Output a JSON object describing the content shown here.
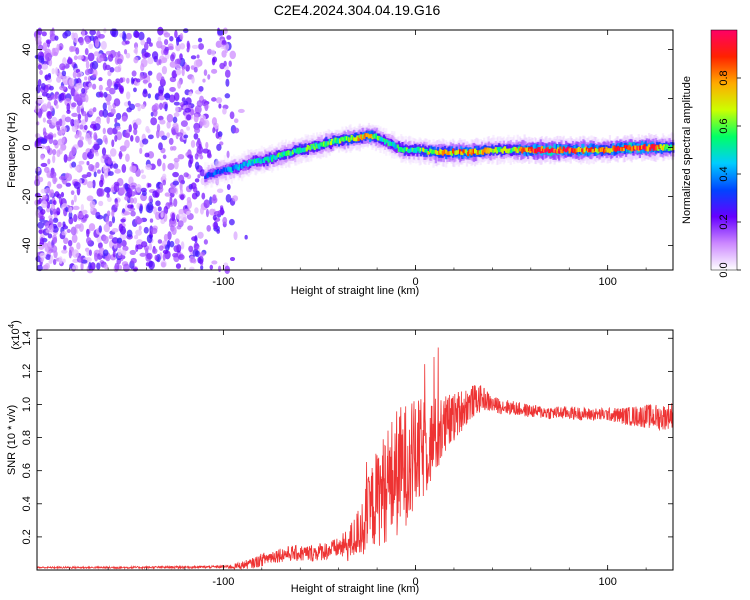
{
  "title": "C2E4.2024.304.04.19.G16",
  "chart_data": [
    {
      "type": "heatmap",
      "xlabel": "Height of straight line (km)",
      "ylabel": "Frequency (Hz)",
      "xlim": [
        -197,
        134
      ],
      "ylim": [
        -50,
        48
      ],
      "x_ticks": [
        -100,
        0,
        100
      ],
      "x_tick_labels": [
        "-100",
        "0",
        "100"
      ],
      "y_ticks": [
        -40,
        -20,
        0,
        20,
        40
      ],
      "y_tick_labels": [
        "-40",
        "-20",
        "0",
        "20",
        "40"
      ],
      "colorbar": {
        "label": "Normalized spectral amplitude",
        "range": [
          0,
          1
        ],
        "ticks": [
          0.0,
          0.2,
          0.4,
          0.6,
          0.8
        ],
        "tick_labels": [
          "0.0",
          "0.2",
          "0.4",
          "0.6",
          "0.8"
        ],
        "colors": [
          "#ffffff",
          "#cc88ff",
          "#6600ff",
          "#0044ff",
          "#00ccff",
          "#00ff66",
          "#ccff00",
          "#ffaa00",
          "#ff2200",
          "#ff0066"
        ]
      },
      "ridge": {
        "x": [
          -110,
          -104,
          -98,
          -92,
          -86,
          -78,
          -70,
          -60,
          -50,
          -40,
          -30,
          -25,
          -20,
          -15,
          -10,
          -5,
          0,
          10,
          20,
          30,
          40,
          50,
          60,
          70,
          80,
          90,
          100,
          110,
          120,
          134
        ],
        "y": [
          -12,
          -10,
          -9,
          -8,
          -6,
          -5,
          -3,
          -1,
          1,
          3,
          4,
          5,
          4,
          2,
          0,
          -1,
          -1,
          -2,
          -2,
          -2,
          -1,
          -1,
          -1,
          -1,
          -1,
          -1,
          -1,
          0,
          0,
          0
        ],
        "amplitude": [
          0.3,
          0.35,
          0.4,
          0.45,
          0.45,
          0.5,
          0.55,
          0.55,
          0.55,
          0.6,
          0.7,
          0.75,
          0.6,
          0.5,
          0.5,
          0.55,
          0.55,
          0.7,
          0.75,
          0.8,
          0.6,
          0.6,
          0.9,
          0.95,
          0.85,
          0.8,
          0.75,
          0.95,
          0.9,
          0.6
        ]
      },
      "noise_region_x": [
        -197,
        -90
      ]
    },
    {
      "type": "line",
      "xlabel": "Height of straight line (km)",
      "ylabel": "SNR (10 * v/v)",
      "y_multiplier_label": "(x10",
      "y_multiplier_exp": "4",
      "xlim": [
        -197,
        134
      ],
      "ylim": [
        0,
        1.45
      ],
      "x_ticks": [
        -100,
        0,
        100
      ],
      "x_tick_labels": [
        "-100",
        "0",
        "100"
      ],
      "y_ticks": [
        0.2,
        0.4,
        0.6,
        0.8,
        1.0,
        1.2,
        1.4
      ],
      "y_tick_labels": [
        "0.2",
        "0.4",
        "0.6",
        "0.8",
        "1.0",
        "1.2",
        "1.4"
      ],
      "line_color": "#ee3333",
      "envelope": {
        "x": [
          -197,
          -150,
          -110,
          -95,
          -85,
          -78,
          -72,
          -65,
          -55,
          -45,
          -35,
          -28,
          -22,
          -16,
          -10,
          -5,
          0,
          5,
          10,
          15,
          20,
          25,
          30,
          35,
          40,
          50,
          60,
          70,
          80,
          90,
          100,
          110,
          120,
          128,
          134
        ],
        "y": [
          0.015,
          0.015,
          0.018,
          0.02,
          0.04,
          0.07,
          0.09,
          0.1,
          0.1,
          0.12,
          0.15,
          0.25,
          0.4,
          0.5,
          0.58,
          0.64,
          0.68,
          0.74,
          0.8,
          0.86,
          0.92,
          0.98,
          1.02,
          1.04,
          1.0,
          0.98,
          0.96,
          0.95,
          0.95,
          0.94,
          0.94,
          0.93,
          0.93,
          0.92,
          0.94
        ]
      },
      "noise_amplitude": {
        "x": [
          -197,
          -100,
          -80,
          -60,
          -40,
          -30,
          -20,
          -10,
          0,
          10,
          20,
          30,
          40,
          60,
          100,
          125,
          134
        ],
        "y": [
          0.005,
          0.008,
          0.04,
          0.05,
          0.06,
          0.15,
          0.3,
          0.4,
          0.35,
          0.25,
          0.15,
          0.1,
          0.05,
          0.04,
          0.04,
          0.08,
          0.08
        ]
      }
    }
  ]
}
